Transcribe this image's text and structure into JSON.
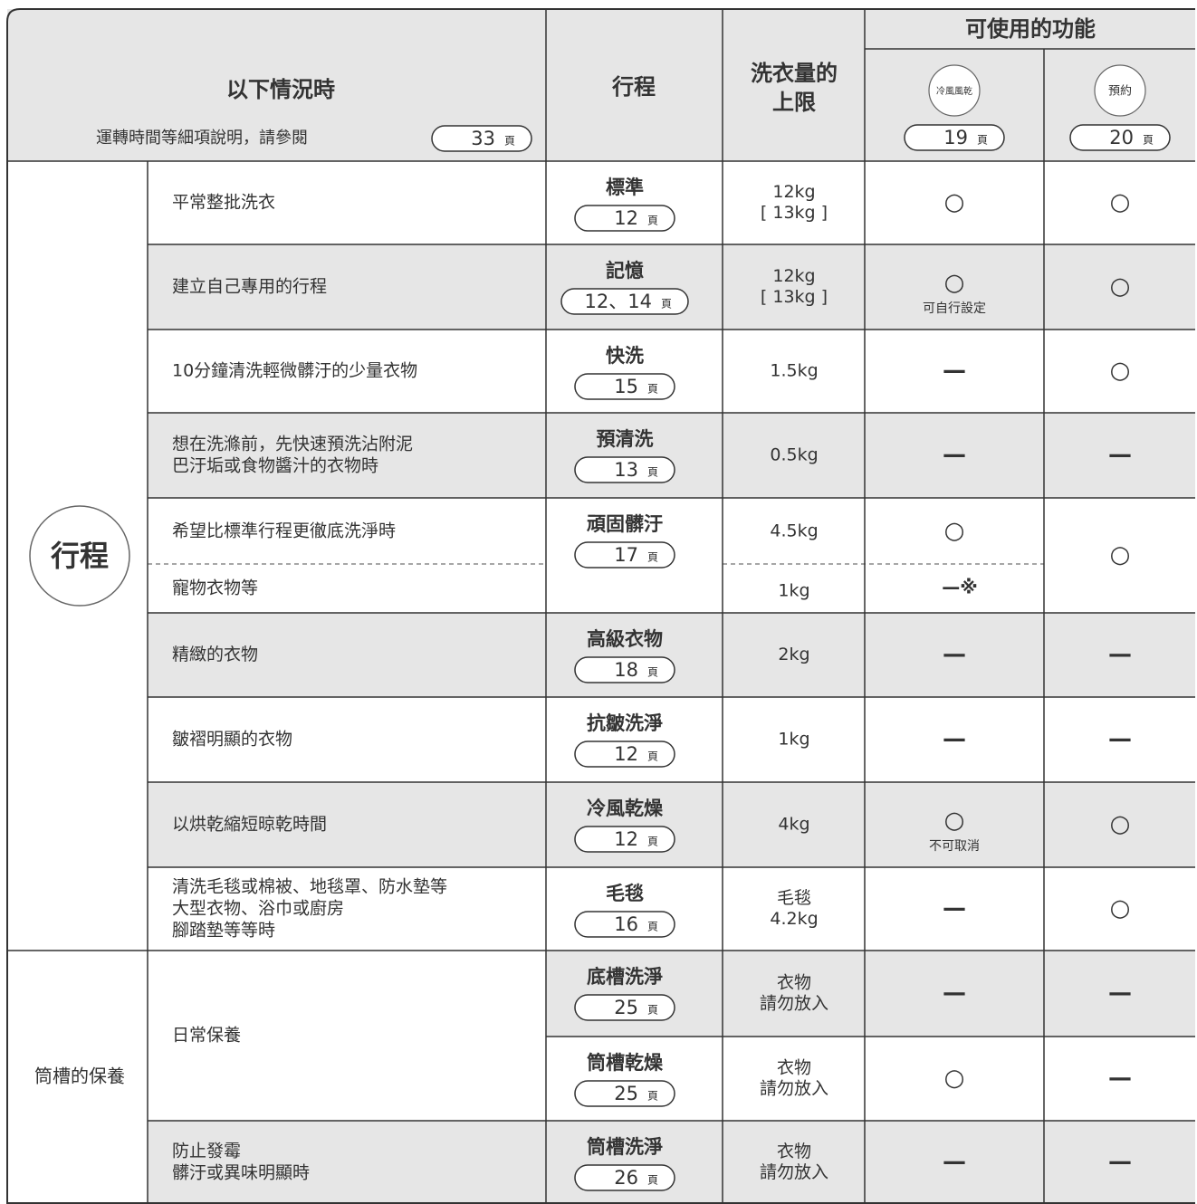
{
  "header": {
    "situation_title": "以下情況時",
    "situation_note": "運轉時間等細項說明，請參閱",
    "situation_page": "33",
    "page_unit": "頁",
    "program": "行程",
    "capacity": [
      "洗衣量的",
      "上限"
    ],
    "functions_title": "可使用的功能",
    "functions": [
      {
        "label": "冷風風乾",
        "page": "19"
      },
      {
        "label": "預約",
        "page": "20"
      }
    ]
  },
  "groups": [
    {
      "label": "行程",
      "items": [
        {
          "situation": [
            "平常整批洗衣"
          ],
          "programs": [
            {
              "name": "標準",
              "page": "12",
              "capacity": [
                "12kg",
                "[ 13kg ]"
              ],
              "cold": "○",
              "reserve": "○"
            }
          ]
        },
        {
          "situation": [
            "建立自己專用的行程"
          ],
          "programs": [
            {
              "name": "記憶",
              "page": "12、14",
              "capacity": [
                "12kg",
                "[ 13kg ]"
              ],
              "cold": "○",
              "cold_note": "可自行設定",
              "reserve": "○"
            }
          ]
        },
        {
          "situation": [
            "10分鐘清洗輕微髒汙的少量衣物"
          ],
          "programs": [
            {
              "name": "快洗",
              "page": "15",
              "capacity": [
                "1.5kg"
              ],
              "cold": "—",
              "reserve": "○"
            }
          ]
        },
        {
          "situation": [
            "想在洗滌前，先快速預洗沾附泥",
            "巴汙垢或食物醬汁的衣物時"
          ],
          "programs": [
            {
              "name": "預清洗",
              "page": "13",
              "capacity": [
                "0.5kg"
              ],
              "cold": "—",
              "reserve": "—"
            }
          ]
        },
        {
          "situation": [
            "希望比標準行程更徹底洗淨時"
          ],
          "programs": [
            {
              "name": "頑固髒汙",
              "page": "17",
              "capacity": [
                "4.5kg"
              ],
              "cold": "○",
              "reserve": "○"
            }
          ],
          "sub": {
            "situation": "寵物衣物等",
            "capacity": "1kg",
            "cold": "—※"
          }
        },
        {
          "situation": [
            "精緻的衣物"
          ],
          "programs": [
            {
              "name": "高級衣物",
              "page": "18",
              "capacity": [
                "2kg"
              ],
              "cold": "—",
              "reserve": "—"
            }
          ]
        },
        {
          "situation": [
            "皺褶明顯的衣物"
          ],
          "programs": [
            {
              "name": "抗皺洗淨",
              "page": "12",
              "capacity": [
                "1kg"
              ],
              "cold": "—",
              "reserve": "—"
            }
          ]
        },
        {
          "situation": [
            "以烘乾縮短晾乾時間"
          ],
          "programs": [
            {
              "name": "冷風乾燥",
              "page": "12",
              "capacity": [
                "4kg"
              ],
              "cold": "○",
              "cold_note": "不可取消",
              "reserve": "○"
            }
          ]
        },
        {
          "situation": [
            "清洗毛毯或棉被、地毯罩、防水墊等",
            "大型衣物、浴巾或廚房",
            "腳踏墊等等時"
          ],
          "programs": [
            {
              "name": "毛毯",
              "page": "16",
              "capacity": [
                "毛毯",
                "4.2kg"
              ],
              "cold": "—",
              "reserve": "○"
            }
          ]
        }
      ]
    },
    {
      "label": "筒槽的保養",
      "items": [
        {
          "situation": [
            "日常保養"
          ],
          "programs": [
            {
              "name": "底槽洗淨",
              "page": "25",
              "capacity": [
                "衣物",
                "請勿放入"
              ],
              "cold": "—",
              "reserve": "—"
            },
            {
              "name": "筒槽乾燥",
              "page": "25",
              "capacity": [
                "衣物",
                "請勿放入"
              ],
              "cold": "○",
              "reserve": "—"
            }
          ]
        },
        {
          "situation": [
            "防止發霉",
            "髒汙或異味明顯時"
          ],
          "programs": [
            {
              "name": "筒槽洗淨",
              "page": "26",
              "capacity": [
                "衣物",
                "請勿放入"
              ],
              "cold": "—",
              "reserve": "—"
            }
          ]
        }
      ]
    }
  ]
}
